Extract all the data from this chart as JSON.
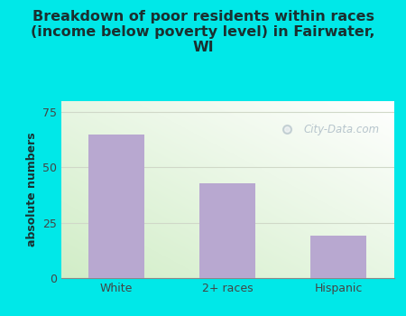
{
  "categories": [
    "White",
    "2+ races",
    "Hispanic"
  ],
  "values": [
    65,
    43,
    19
  ],
  "bar_color": "#b8a8d0",
  "title": "Breakdown of poor residents within races\n(income below poverty level) in Fairwater,\nWI",
  "ylabel": "absolute numbers",
  "ylim": [
    0,
    80
  ],
  "yticks": [
    0,
    25,
    50,
    75
  ],
  "background_color": "#00e8e8",
  "plot_bg_color": "#e8f2e0",
  "grid_color": "#d0d8c8",
  "title_color": "#1a3030",
  "title_fontsize": 11.5,
  "ylabel_color": "#1a3030",
  "ylabel_fontsize": 9,
  "watermark_text": "City-Data.com",
  "watermark_color": "#b0bfc8",
  "tick_color": "#444444",
  "tick_fontsize": 9
}
